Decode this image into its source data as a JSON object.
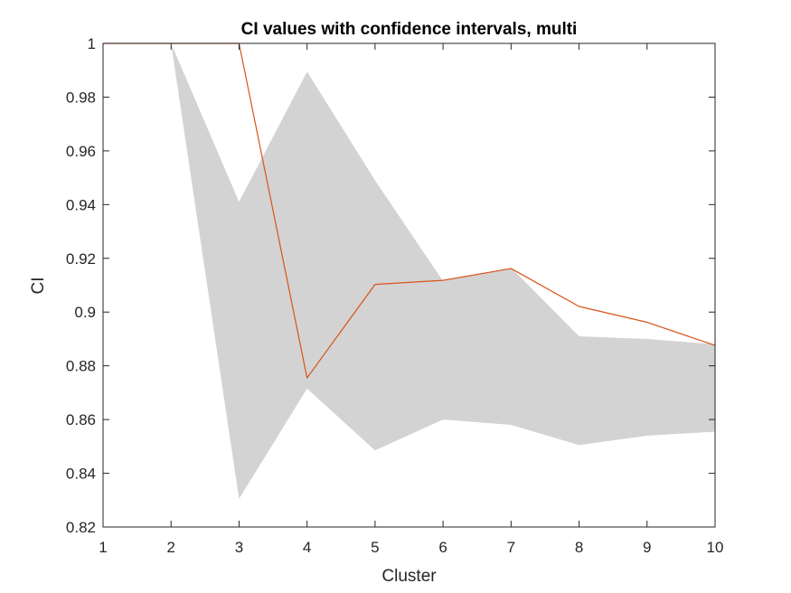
{
  "chart_data": {
    "type": "line",
    "title": "CI values with confidence intervals, multi",
    "xlabel": "Cluster",
    "ylabel": "CI",
    "xlim": [
      1,
      10
    ],
    "ylim": [
      0.82,
      1
    ],
    "x": [
      1,
      2,
      3,
      4,
      5,
      6,
      7,
      8,
      9,
      10
    ],
    "xticks": [
      "1",
      "2",
      "3",
      "4",
      "5",
      "6",
      "7",
      "8",
      "9",
      "10"
    ],
    "yticks": [
      "0.82",
      "0.84",
      "0.86",
      "0.88",
      "0.9",
      "0.92",
      "0.94",
      "0.96",
      "0.98",
      "1"
    ],
    "yticks_values": [
      0.82,
      0.84,
      0.86,
      0.88,
      0.9,
      0.92,
      0.94,
      0.96,
      0.98,
      1.0
    ],
    "grid": false,
    "series": [
      {
        "kind": "line",
        "color": "#D95319",
        "values": [
          1.0,
          1.0,
          1.0,
          0.8755,
          0.9103,
          0.9118,
          0.9162,
          0.9021,
          0.8962,
          0.8876
        ]
      }
    ],
    "band": {
      "color": "#D3D3D3",
      "upper": [
        1.0,
        1.0,
        0.941,
        0.9895,
        0.949,
        0.9115,
        0.9165,
        0.891,
        0.89,
        0.888
      ],
      "lower": [
        1.0,
        1.0,
        0.8305,
        0.8715,
        0.8485,
        0.86,
        0.858,
        0.8505,
        0.854,
        0.8555
      ]
    }
  }
}
